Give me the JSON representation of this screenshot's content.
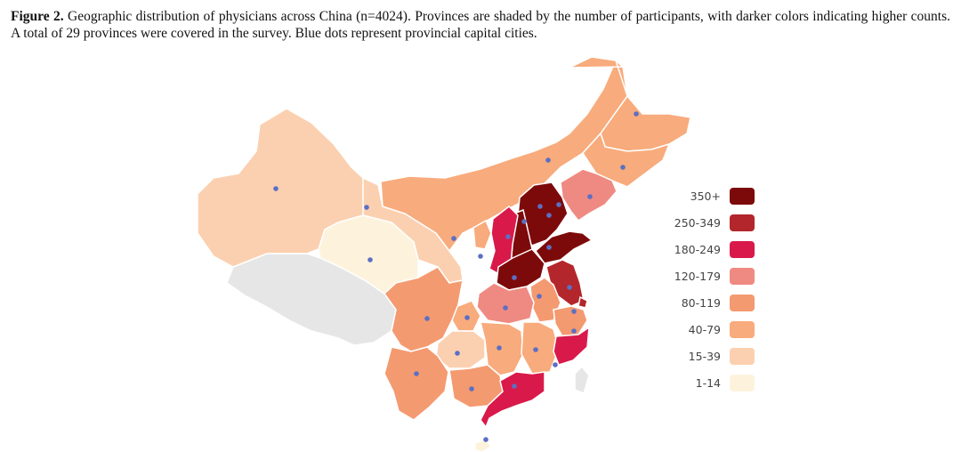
{
  "caption": {
    "label": "Figure 2.",
    "text": " Geographic distribution of physicians across China (n=4024). Provinces are shaded by the number of participants, with darker colors indicating higher counts. A total of 29 provinces were covered in the survey. Blue dots represent provincial capital cities."
  },
  "legend": {
    "items": [
      {
        "label": "350+",
        "color": "#7d0a0a"
      },
      {
        "label": "250-349",
        "color": "#b3262b"
      },
      {
        "label": "180-249",
        "color": "#d9194a"
      },
      {
        "label": "120-179",
        "color": "#ef8a82"
      },
      {
        "label": "80-119",
        "color": "#f49a70"
      },
      {
        "label": "40-79",
        "color": "#f8ab7c"
      },
      {
        "label": "15-39",
        "color": "#fbd0b0"
      },
      {
        "label": "1-14",
        "color": "#fdf3dc"
      }
    ]
  },
  "colors": {
    "no_data": "#e6e6e6",
    "capital_dot": "#5b6fc4",
    "border": "#ffffff"
  }
}
